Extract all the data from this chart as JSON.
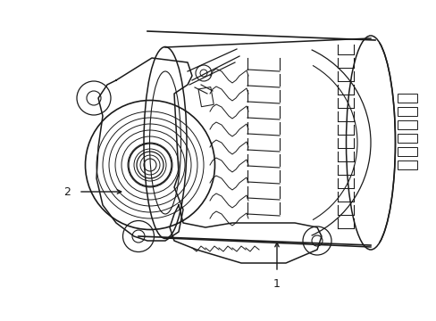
{
  "background_color": "#ffffff",
  "line_color": "#1a1a1a",
  "label1_text": "1",
  "label2_text": "2",
  "figsize": [
    4.89,
    3.6
  ],
  "dpi": 100
}
